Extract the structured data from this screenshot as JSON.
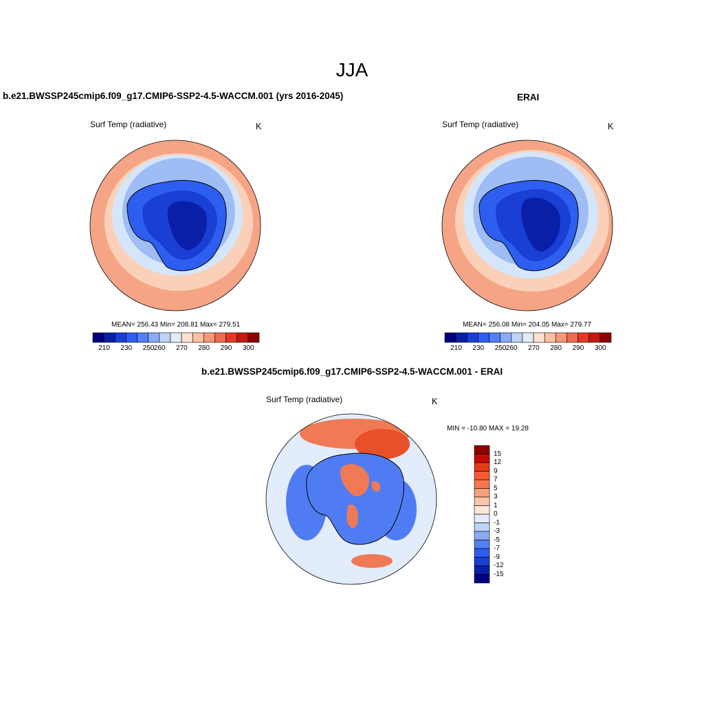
{
  "figure": {
    "season": "JJA"
  },
  "panels": {
    "model": {
      "title": "b.e21.BWSSP245cmip6.f09_g17.CMIP6-SSP2-4.5-WACCM.001 (yrs 2016-2045)",
      "variable": "Surf Temp (radiative)",
      "units": "K",
      "stats": "MEAN= 256.43  Min= 208.81  Max= 279.51"
    },
    "obs": {
      "title": "ERAI",
      "variable": "Surf Temp (radiative)",
      "units": "K",
      "stats": "MEAN= 256.08  Min= 204.05  Max= 279.77"
    },
    "diff": {
      "title": "b.e21.BWSSP245cmip6.f09_g17.CMIP6-SSP2-4.5-WACCM.001 - ERAI",
      "variable": "Surf Temp (radiative)",
      "units": "K",
      "stats": "MIN = -10.80 MAX =  19.28"
    }
  },
  "colorbars": {
    "abs": {
      "colors": [
        "#00007f",
        "#0a1fa8",
        "#1a3fd4",
        "#2d5ef0",
        "#557ff5",
        "#8aaaf5",
        "#bcd2f7",
        "#e2ecfb",
        "#fde3cf",
        "#fac0a0",
        "#f5977a",
        "#ed6a50",
        "#e03a25",
        "#c41a10",
        "#8c0000"
      ],
      "labels": [
        "210",
        "230",
        "250",
        "260",
        "270",
        "280",
        "290",
        "300"
      ]
    },
    "diff": {
      "colors": [
        "#8c0000",
        "#c40a00",
        "#e43a15",
        "#f55a30",
        "#f57850",
        "#f7a07c",
        "#fbc4a8",
        "#fde8da",
        "#e2ecfb",
        "#bcd2f7",
        "#8aaaf5",
        "#557ff5",
        "#2d5ef0",
        "#1a3fd4",
        "#0a1fa8",
        "#00007f"
      ],
      "labels": [
        "15",
        "12",
        "9",
        "7",
        "5",
        "3",
        "1",
        "0",
        "-1",
        "-3",
        "-5",
        "-7",
        "-9",
        "-12",
        "-15"
      ]
    }
  },
  "map_colors": {
    "ocean_warm": "#f5a585",
    "ocean_mid": "#fbd0b8",
    "ice_light": "#d6e6fa",
    "ice_mid": "#9ebdf5",
    "land_blue": "#2d5ef0",
    "land_dark": "#1a3fd4",
    "land_core": "#0a1fa8",
    "diff_neutral": "#e2ecfb",
    "diff_red": "#f07a55",
    "diff_blue": "#4f7cf2"
  }
}
